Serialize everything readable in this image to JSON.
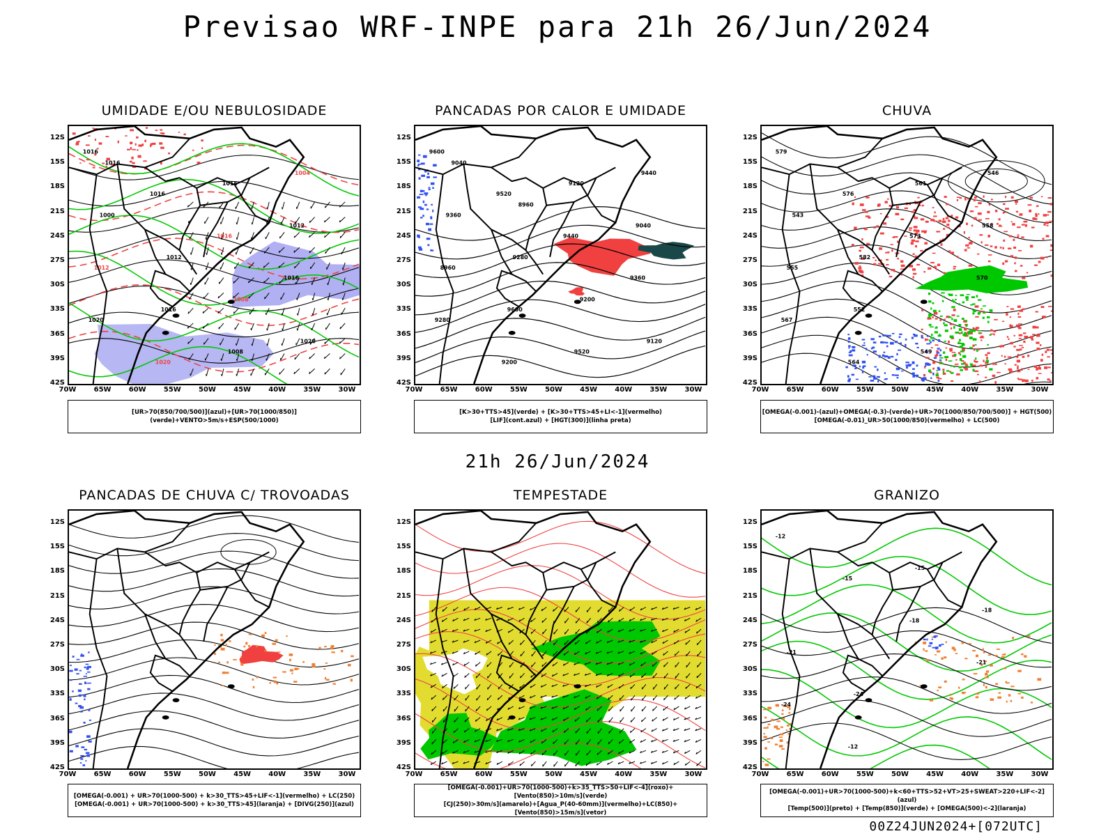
{
  "title": "Previsao WRF-INPE  para 21h 26/Jun/2024",
  "mid_date": "21h 26/Jun/2024",
  "footer": "00Z24JUN2024+[072UTC]",
  "lat_ticks": [
    "12S",
    "15S",
    "18S",
    "21S",
    "24S",
    "27S",
    "30S",
    "33S",
    "36S",
    "39S",
    "42S"
  ],
  "lon_ticks": [
    "70W",
    "65W",
    "60W",
    "55W",
    "50W",
    "45W",
    "40W",
    "35W",
    "30W"
  ],
  "colors": {
    "red": "#f04040",
    "green": "#00c800",
    "blue": "#3050f0",
    "purple": "#7070e8",
    "yellow": "#e2dc30",
    "orange": "#f08030",
    "teal": "#1a4848"
  },
  "panels": [
    {
      "id": "umidade",
      "title": "UMIDADE E/OU NEBULOSIDADE",
      "legend": [
        "[UR>70(850/700/500)](azul)+[UR>70(1000/850)](verde)+VENTO>5m/s+ESP(500/1000)"
      ],
      "labels": [
        "1016",
        "1016",
        "1016",
        "1016",
        "1020",
        "1020",
        "1016",
        "1012",
        "1012",
        "1016",
        "1008",
        "1004",
        "1000",
        "1012",
        "1008",
        "1020",
        "1016"
      ]
    },
    {
      "id": "pancadas-calor",
      "title": "PANCADAS POR CALOR E UMIDADE",
      "legend": [
        "[K>30+TTS>45](verde) + [K>30+TTS>45+LI<-1](vermelho)",
        "[LIF](cont.azul) + [HGT(300)](linha preta)"
      ],
      "labels": [
        "9600",
        "9520",
        "9440",
        "9360",
        "9280",
        "9200",
        "9120",
        "9040",
        "8960",
        "9600",
        "9520",
        "9440",
        "9360",
        "9280",
        "9200",
        "9120",
        "9040",
        "8960"
      ]
    },
    {
      "id": "chuva",
      "title": "CHUVA",
      "legend": [
        "[OMEGA(-0.001)-(azul)+OMEGA(-0.3)-(verde)+UR>70(1000/850/700/500)] + HGT(500)",
        "[OMEGA(-0.01)_UR>50(1000/850)(vermelho) + LC(500)"
      ],
      "labels": [
        "579",
        "576",
        "573",
        "570",
        "567",
        "564",
        "561",
        "558",
        "555",
        "552",
        "549",
        "546",
        "543",
        "582"
      ]
    },
    {
      "id": "pancadas-trovoadas",
      "title": "PANCADAS DE CHUVA C/ TROVOADAS",
      "legend": [
        "[OMEGA(-0.001) + UR>70(1000-500) + k>30_TTS>45+LIF<-1](vermelho) + LC(250)",
        "[OMEGA(-0.001) + UR>70(1000-500) + k>30_TTS>45](laranja) + [DIVG(250)](azul)"
      ],
      "labels": []
    },
    {
      "id": "tempestade",
      "title": "TEMPESTADE",
      "legend": [
        "[OMEGA(-0.001)+UR>70(1000-500)+k>35_TTS>50+LIF<-4](roxo)+[Vento(850)>10m/s](verde)",
        "[CJ(250)>30m/s](amarelo)+[Agua_P(40-60mm)](vermelho)+LC(850)+[Vento(850)>15m/s](vetor)"
      ],
      "labels": []
    },
    {
      "id": "granizo",
      "title": "GRANIZO",
      "legend": [
        "[OMEGA(-0.001)+UR>70(1000-500)+k<60+TTS>52+VT>25+SWEAT>220+LIF<-2](azul)",
        "[Temp(500)](preto) + [Temp(850)](verde) + [OMEGA(500)<-2](laranja)"
      ],
      "labels": [
        "-12",
        "-15",
        "-18",
        "-21",
        "-24",
        "-12",
        "-15",
        "-18",
        "-21",
        "-24"
      ]
    }
  ]
}
